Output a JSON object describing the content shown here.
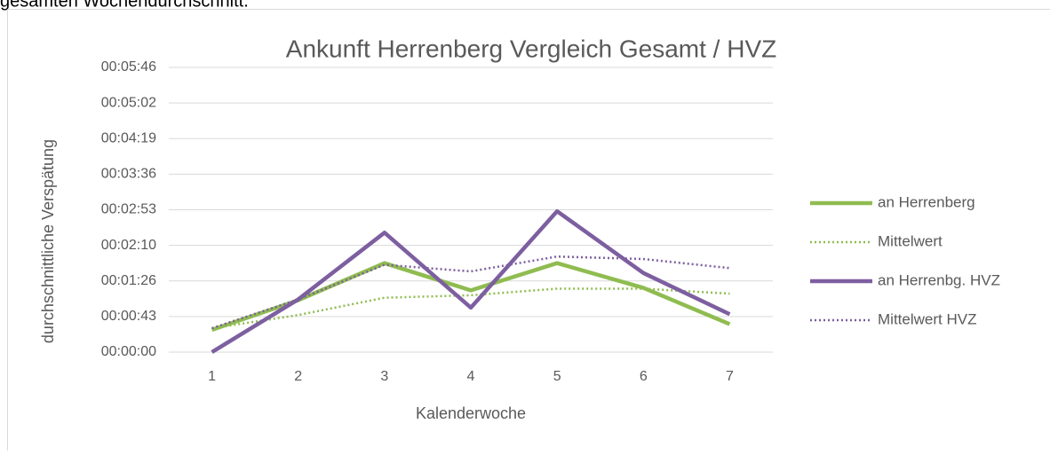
{
  "caption": "gesamten Wochendurchschnitt.",
  "chart_data": {
    "type": "line",
    "title": "Ankunft Herrenberg Vergleich Gesamt / HVZ",
    "x_label": "Kalenderwoche",
    "y_label": "durchschnittliche Verspätung",
    "categories": [
      "1",
      "2",
      "3",
      "4",
      "5",
      "6",
      "7"
    ],
    "ylim": [
      0,
      345.6
    ],
    "yticks": [
      {
        "value": 0,
        "label": "00:00:00"
      },
      {
        "value": 43.2,
        "label": "00:00:43"
      },
      {
        "value": 86.4,
        "label": "00:01:26"
      },
      {
        "value": 129.6,
        "label": "00:02:10"
      },
      {
        "value": 172.8,
        "label": "00:02:53"
      },
      {
        "value": 216,
        "label": "00:03:36"
      },
      {
        "value": 259.2,
        "label": "00:04:19"
      },
      {
        "value": 302.4,
        "label": "00:05:02"
      },
      {
        "value": 345.6,
        "label": "00:05:46"
      }
    ],
    "grid": true,
    "legend": "right",
    "series": [
      {
        "name": "an Herrenberg",
        "color": "#8fbc50",
        "style": "solid",
        "values": [
          27,
          63,
          108,
          75,
          108,
          78,
          34
        ]
      },
      {
        "name": "Mittelwert",
        "color": "#8fbc50",
        "style": "dotted",
        "values": [
          29,
          45,
          66,
          69,
          77,
          77,
          71
        ]
      },
      {
        "name": "an Herrenbg. HVZ",
        "color": "#7d5fa0",
        "style": "solid",
        "values": [
          0,
          64,
          145,
          54,
          171,
          96,
          46
        ]
      },
      {
        "name": "Mittelwert HVZ",
        "color": "#7d5fa0",
        "style": "dotted",
        "values": [
          29,
          64,
          106,
          98,
          116,
          113,
          102
        ]
      }
    ]
  }
}
